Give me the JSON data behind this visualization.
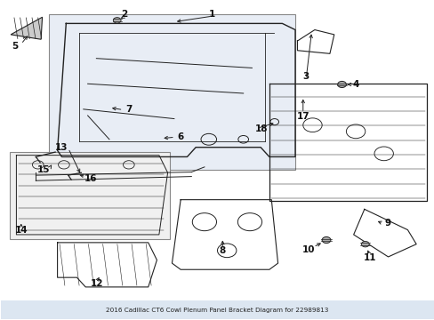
{
  "title": "2016 Cadillac CT6 Cowl Plenum Panel Bracket Diagram for 22989813",
  "bg_color": "#ffffff",
  "line_color": "#222222",
  "label_font_size": 7.5,
  "box1_bg": "#e8edf5",
  "box2_bg": "#f0f0f0",
  "title_bar_color": "#dce6f1",
  "bolt_fill": "#aaaaaa"
}
